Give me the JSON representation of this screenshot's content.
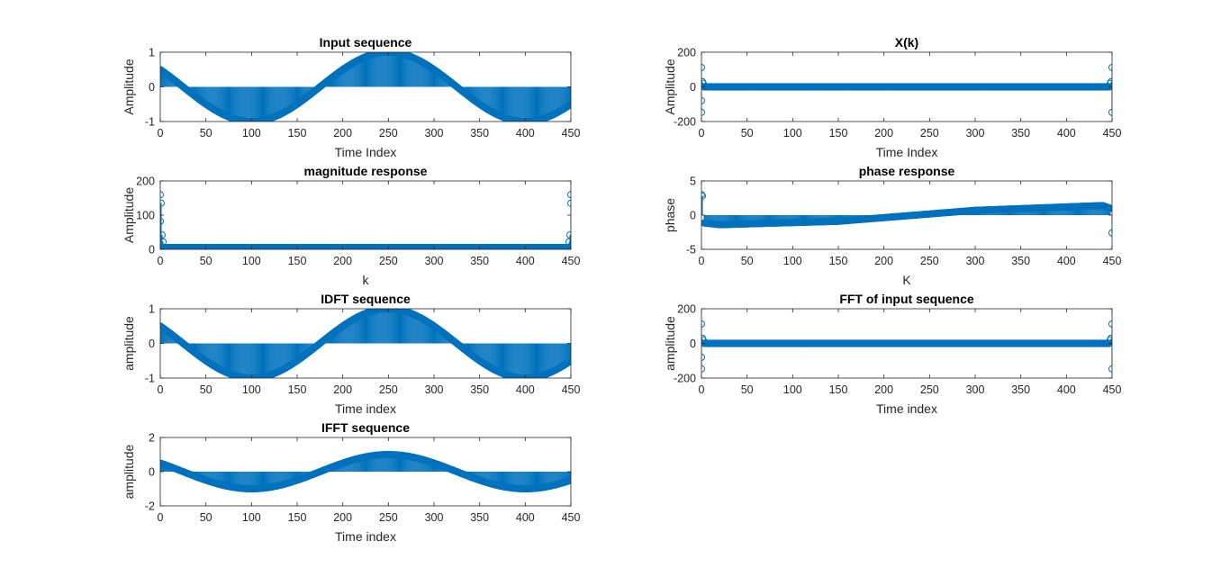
{
  "colors": {
    "series": "#0072BD",
    "axis": "#262626",
    "background": "#ffffff"
  },
  "chart_data": [
    {
      "id": "input",
      "type": "stem",
      "title": "Input sequence",
      "xlabel": "Time Index",
      "ylabel": "Amplitude",
      "xlim": [
        0,
        450
      ],
      "ylim": [
        -1,
        1
      ],
      "xticks": [
        0,
        50,
        100,
        150,
        200,
        250,
        300,
        350,
        400,
        450
      ],
      "yticks": [
        -1,
        0,
        1
      ],
      "signal": {
        "kind": "cosine",
        "n": [
          0,
          450
        ],
        "amplitude": 1.0,
        "period": 300,
        "phase_rad": 1.0472,
        "peak_at": 250,
        "trough_at": [
          100,
          400
        ],
        "start_value": 0.5,
        "end_value": -0.5
      }
    },
    {
      "id": "xk",
      "type": "stem",
      "title": "X(k)",
      "xlabel": "Time Index",
      "ylabel": "Amplitude",
      "xlim": [
        0,
        450
      ],
      "ylim": [
        -200,
        200
      ],
      "xticks": [
        0,
        50,
        100,
        150,
        200,
        250,
        300,
        350,
        400,
        450
      ],
      "yticks": [
        -200,
        0,
        200
      ],
      "spikes": [
        [
          0,
          112
        ],
        [
          0,
          -80
        ],
        [
          0,
          -147
        ],
        [
          1,
          30
        ],
        [
          2,
          20
        ],
        [
          448,
          20
        ],
        [
          449,
          30
        ],
        [
          450,
          112
        ],
        [
          450,
          -147
        ]
      ]
    },
    {
      "id": "mag",
      "type": "stem",
      "title": "magnitude response",
      "xlabel": "k",
      "ylabel": "Amplitude",
      "xlim": [
        0,
        450
      ],
      "ylim": [
        0,
        200
      ],
      "xticks": [
        0,
        50,
        100,
        150,
        200,
        250,
        300,
        350,
        400,
        450
      ],
      "yticks": [
        0,
        100,
        200
      ],
      "spikes": [
        [
          0,
          160
        ],
        [
          0,
          82
        ],
        [
          1,
          135
        ],
        [
          2,
          42
        ],
        [
          3,
          22
        ],
        [
          448,
          22
        ],
        [
          449,
          42
        ],
        [
          450,
          135
        ],
        [
          450,
          160
        ]
      ],
      "baseline_level": 5
    },
    {
      "id": "phase",
      "type": "stem",
      "title": "phase response",
      "xlabel": "K",
      "ylabel": "phase",
      "xlim": [
        0,
        450
      ],
      "ylim": [
        -5,
        5
      ],
      "xticks": [
        0,
        50,
        100,
        150,
        200,
        250,
        300,
        350,
        400,
        450
      ],
      "yticks": [
        -5,
        0,
        5
      ],
      "spikes": [
        [
          0,
          3.0
        ],
        [
          1,
          2.8
        ],
        [
          450,
          -2.6
        ]
      ],
      "ramp": [
        [
          0,
          -1.1
        ],
        [
          20,
          -1.4
        ],
        [
          150,
          -0.9
        ],
        [
          300,
          0.7
        ],
        [
          440,
          1.4
        ],
        [
          450,
          0.9
        ]
      ]
    },
    {
      "id": "idft",
      "type": "stem",
      "title": "IDFT sequence",
      "xlabel": "Time index",
      "ylabel": "amplitude",
      "xlim": [
        0,
        450
      ],
      "ylim": [
        -1,
        1
      ],
      "xticks": [
        0,
        50,
        100,
        150,
        200,
        250,
        300,
        350,
        400,
        450
      ],
      "yticks": [
        -1,
        0,
        1
      ],
      "signal": {
        "kind": "cosine",
        "n": [
          0,
          450
        ],
        "amplitude": 1.0,
        "period": 300,
        "phase_rad": 1.0472,
        "peak_at": 250,
        "trough_at": [
          100,
          400
        ],
        "start_value": 0.5,
        "end_value": -0.5
      }
    },
    {
      "id": "fft",
      "type": "stem",
      "title": "FFT of input sequence",
      "xlabel": "Time index",
      "ylabel": "amplitude",
      "xlim": [
        0,
        450
      ],
      "ylim": [
        -200,
        200
      ],
      "xticks": [
        0,
        50,
        100,
        150,
        200,
        250,
        300,
        350,
        400,
        450
      ],
      "yticks": [
        -200,
        0,
        200
      ],
      "spikes": [
        [
          0,
          112
        ],
        [
          0,
          -80
        ],
        [
          0,
          -147
        ],
        [
          1,
          30
        ],
        [
          2,
          20
        ],
        [
          448,
          20
        ],
        [
          449,
          30
        ],
        [
          450,
          112
        ],
        [
          450,
          -147
        ]
      ]
    },
    {
      "id": "ifft",
      "type": "stem",
      "title": "IFFT sequence",
      "xlabel": "Time index",
      "ylabel": "amplitude",
      "xlim": [
        0,
        450
      ],
      "ylim": [
        -2,
        2
      ],
      "xticks": [
        0,
        50,
        100,
        150,
        200,
        250,
        300,
        350,
        400,
        450
      ],
      "yticks": [
        -2,
        0,
        2
      ],
      "signal": {
        "kind": "cosine",
        "n": [
          0,
          450
        ],
        "amplitude": 1.0,
        "period": 300,
        "phase_rad": 1.0472,
        "peak_at": 250,
        "trough_at": [
          100,
          400
        ],
        "start_value": 0.5,
        "end_value": -0.5
      }
    }
  ]
}
